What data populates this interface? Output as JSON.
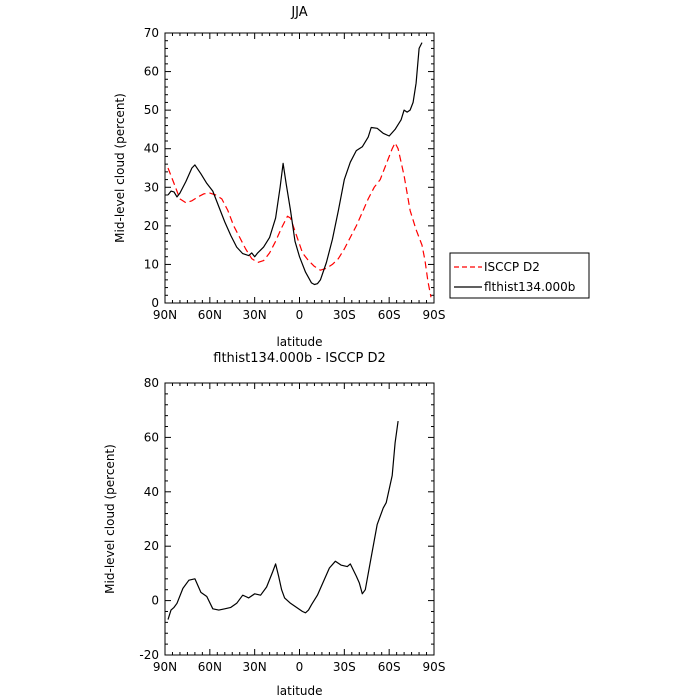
{
  "chart_data": [
    {
      "type": "line",
      "title": "JJA",
      "xlabel": "latitude",
      "ylabel": "Mid-level cloud (percent)",
      "xlim": [
        -90,
        90
      ],
      "ylim": [
        0,
        70
      ],
      "x_ticks": [
        {
          "value": -90,
          "label": "90N"
        },
        {
          "value": -60,
          "label": "60N"
        },
        {
          "value": -30,
          "label": "30N"
        },
        {
          "value": 0,
          "label": "0"
        },
        {
          "value": 30,
          "label": "30S"
        },
        {
          "value": 60,
          "label": "60S"
        },
        {
          "value": 90,
          "label": "90S"
        }
      ],
      "y_ticks": [
        0,
        10,
        20,
        30,
        40,
        50,
        60,
        70
      ],
      "legend_position": "right-outside",
      "series": [
        {
          "name": "ISCCP D2",
          "color": "#ff0000",
          "dash": "dashed",
          "points": [
            [
              -88,
              35
            ],
            [
              -84,
              31
            ],
            [
              -80,
              27
            ],
            [
              -76,
              26
            ],
            [
              -72,
              26.5
            ],
            [
              -68,
              27.5
            ],
            [
              -64,
              28.3
            ],
            [
              -60,
              28.5
            ],
            [
              -56,
              28
            ],
            [
              -52,
              27
            ],
            [
              -48,
              24
            ],
            [
              -44,
              20
            ],
            [
              -40,
              17
            ],
            [
              -36,
              14
            ],
            [
              -32,
              11.5
            ],
            [
              -28,
              10.5
            ],
            [
              -24,
              11
            ],
            [
              -20,
              13
            ],
            [
              -16,
              16
            ],
            [
              -12,
              19.5
            ],
            [
              -8,
              22.5
            ],
            [
              -6,
              22
            ],
            [
              -2,
              17.5
            ],
            [
              2,
              13
            ],
            [
              6,
              11
            ],
            [
              10,
              9.5
            ],
            [
              14,
              8.5
            ],
            [
              18,
              9
            ],
            [
              22,
              10
            ],
            [
              26,
              11.5
            ],
            [
              30,
              14
            ],
            [
              34,
              17
            ],
            [
              38,
              20
            ],
            [
              42,
              23.5
            ],
            [
              46,
              27
            ],
            [
              50,
              30
            ],
            [
              54,
              32
            ],
            [
              58,
              36
            ],
            [
              62,
              40
            ],
            [
              64,
              41.5
            ],
            [
              66,
              40
            ],
            [
              70,
              33
            ],
            [
              74,
              24
            ],
            [
              78,
              19
            ],
            [
              82,
              15
            ],
            [
              84,
              11
            ],
            [
              86,
              5.5
            ],
            [
              88,
              1.5
            ]
          ]
        },
        {
          "name": "flthist134.000b",
          "color": "#000000",
          "dash": "solid",
          "points": [
            [
              -88,
              28
            ],
            [
              -86,
              29
            ],
            [
              -84,
              28.8
            ],
            [
              -82,
              27.5
            ],
            [
              -80,
              28.5
            ],
            [
              -76,
              31.5
            ],
            [
              -72,
              35
            ],
            [
              -70,
              35.8
            ],
            [
              -66,
              33.5
            ],
            [
              -62,
              31
            ],
            [
              -58,
              29
            ],
            [
              -54,
              25
            ],
            [
              -50,
              21
            ],
            [
              -46,
              17.5
            ],
            [
              -42,
              14.5
            ],
            [
              -38,
              12.8
            ],
            [
              -34,
              12.3
            ],
            [
              -32,
              13
            ],
            [
              -30,
              12
            ],
            [
              -28,
              13
            ],
            [
              -24,
              14.5
            ],
            [
              -20,
              17
            ],
            [
              -16,
              22
            ],
            [
              -13,
              30
            ],
            [
              -11,
              36.2
            ],
            [
              -9,
              31
            ],
            [
              -6,
              24
            ],
            [
              -3,
              16
            ],
            [
              0,
              12
            ],
            [
              4,
              8
            ],
            [
              8,
              5.2
            ],
            [
              10,
              4.8
            ],
            [
              12,
              5
            ],
            [
              14,
              6
            ],
            [
              18,
              10.5
            ],
            [
              22,
              16.5
            ],
            [
              26,
              24
            ],
            [
              30,
              32
            ],
            [
              34,
              36.5
            ],
            [
              38,
              39.5
            ],
            [
              42,
              40.5
            ],
            [
              46,
              43
            ],
            [
              48,
              45.5
            ],
            [
              52,
              45.3
            ],
            [
              56,
              44
            ],
            [
              60,
              43.3
            ],
            [
              64,
              45
            ],
            [
              68,
              47.5
            ],
            [
              70,
              50
            ],
            [
              72,
              49.5
            ],
            [
              74,
              50
            ],
            [
              76,
              52
            ],
            [
              78,
              57
            ],
            [
              80,
              66
            ],
            [
              82,
              67.5
            ]
          ]
        }
      ]
    },
    {
      "type": "line",
      "title": "flthist134.000b - ISCCP D2",
      "xlabel": "latitude",
      "ylabel": "Mid-level cloud (percent)",
      "xlim": [
        -90,
        90
      ],
      "ylim": [
        -20,
        80
      ],
      "x_ticks": [
        {
          "value": -90,
          "label": "90N"
        },
        {
          "value": -60,
          "label": "60N"
        },
        {
          "value": -30,
          "label": "30N"
        },
        {
          "value": 0,
          "label": "0"
        },
        {
          "value": 30,
          "label": "30S"
        },
        {
          "value": 60,
          "label": "60S"
        },
        {
          "value": 90,
          "label": "90S"
        }
      ],
      "y_ticks": [
        -20,
        0,
        20,
        40,
        60,
        80
      ],
      "series": [
        {
          "color": "#000000",
          "dash": "solid",
          "points": [
            [
              -88,
              -7
            ],
            [
              -86,
              -3.5
            ],
            [
              -84,
              -2.5
            ],
            [
              -82,
              -1
            ],
            [
              -78,
              4.5
            ],
            [
              -74,
              7.5
            ],
            [
              -70,
              8
            ],
            [
              -66,
              3
            ],
            [
              -62,
              1.5
            ],
            [
              -58,
              -3
            ],
            [
              -54,
              -3.5
            ],
            [
              -50,
              -3
            ],
            [
              -46,
              -2.5
            ],
            [
              -42,
              -1
            ],
            [
              -38,
              2
            ],
            [
              -36,
              1.5
            ],
            [
              -34,
              1
            ],
            [
              -30,
              2.5
            ],
            [
              -26,
              2
            ],
            [
              -22,
              5
            ],
            [
              -18,
              10.5
            ],
            [
              -16,
              13.5
            ],
            [
              -14,
              9
            ],
            [
              -12,
              4
            ],
            [
              -10,
              1
            ],
            [
              -6,
              -1
            ],
            [
              -2,
              -2.5
            ],
            [
              2,
              -4
            ],
            [
              4,
              -4.5
            ],
            [
              6,
              -3.5
            ],
            [
              8,
              -1.5
            ],
            [
              12,
              2
            ],
            [
              16,
              7
            ],
            [
              20,
              12
            ],
            [
              24,
              14.5
            ],
            [
              28,
              13
            ],
            [
              32,
              12.5
            ],
            [
              34,
              13.5
            ],
            [
              38,
              9
            ],
            [
              40,
              6.5
            ],
            [
              42,
              2.5
            ],
            [
              44,
              4
            ],
            [
              48,
              16
            ],
            [
              52,
              28
            ],
            [
              56,
              34
            ],
            [
              58,
              36
            ],
            [
              62,
              46
            ],
            [
              64,
              58
            ],
            [
              66,
              66
            ]
          ]
        }
      ]
    }
  ]
}
